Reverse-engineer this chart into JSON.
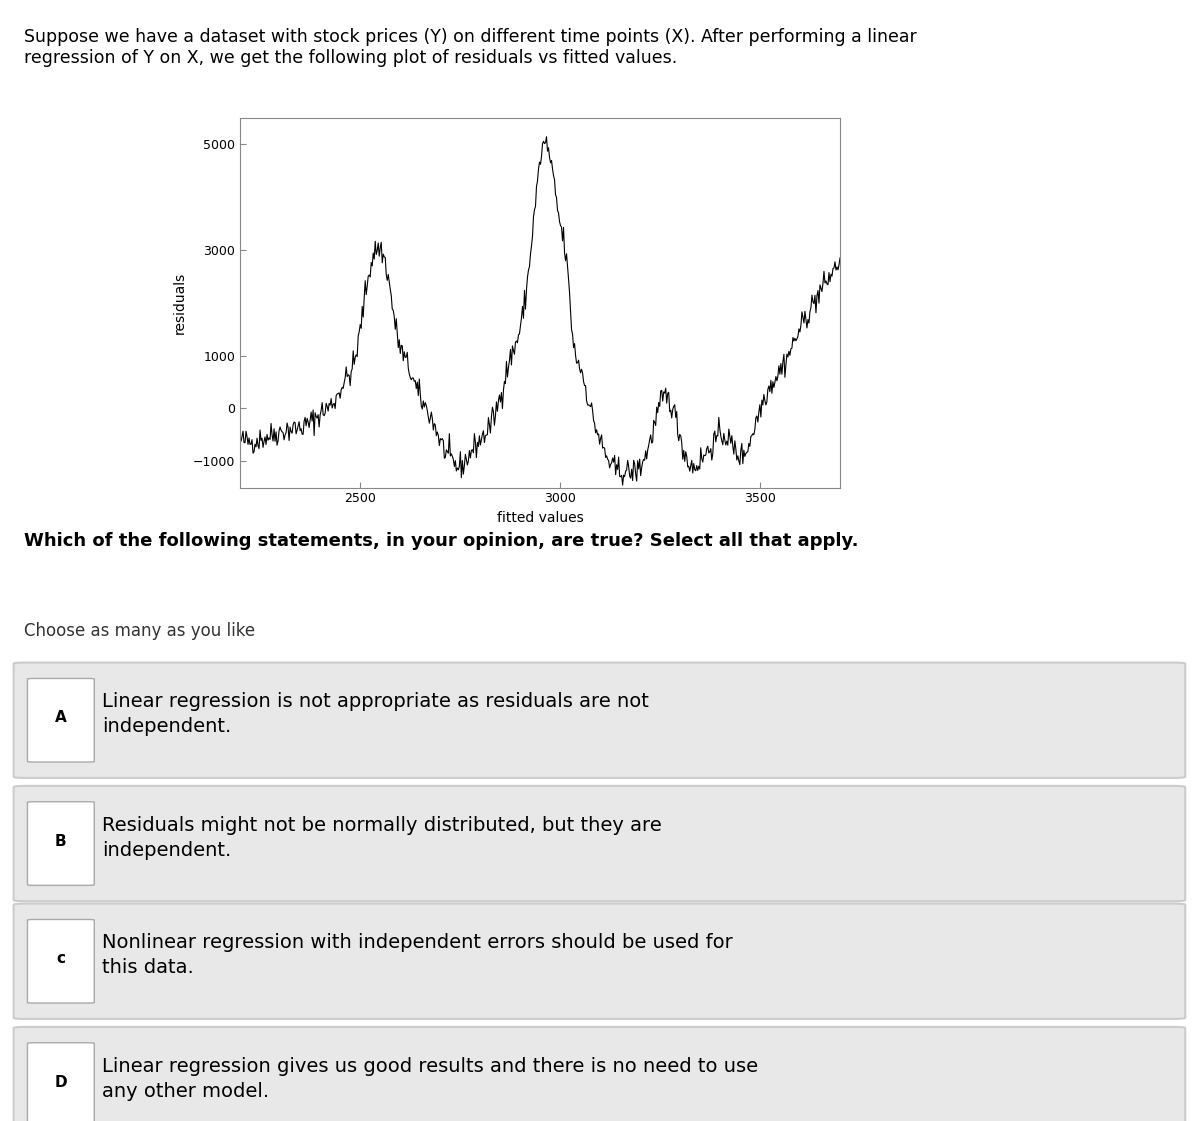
{
  "title_text": "Suppose we have a dataset with stock prices (Y) on different time points (X). After performing a linear\nregression of Y on X, we get the following plot of residuals vs fitted values.",
  "xlabel": "fitted values",
  "ylabel": "residuals",
  "xlim": [
    2200,
    3700
  ],
  "ylim": [
    -1500,
    5500
  ],
  "xticks": [
    2500,
    3000,
    3500
  ],
  "yticks": [
    -1000,
    0,
    1000,
    3000,
    5000
  ],
  "question_text": "Which of the following statements, in your opinion, are true? Select all that apply.",
  "choose_text": "Choose as many as you like",
  "options": [
    {
      "label": "A",
      "text": "Linear regression is not appropriate as residuals are not\nindependent."
    },
    {
      "label": "B",
      "text": "Residuals might not be normally distributed, but they are\nindependent."
    },
    {
      "label": "c",
      "text": "Nonlinear regression with independent errors should be used for\nthis data."
    },
    {
      "label": "D",
      "text": "Linear regression gives us good results and there is no need to use\nany other model."
    }
  ],
  "bg_color": "#ffffff",
  "plot_bg_color": "#ffffff",
  "line_color": "#000000",
  "option_bg_color": "#e8e8e8",
  "option_border_color": "#cccccc"
}
